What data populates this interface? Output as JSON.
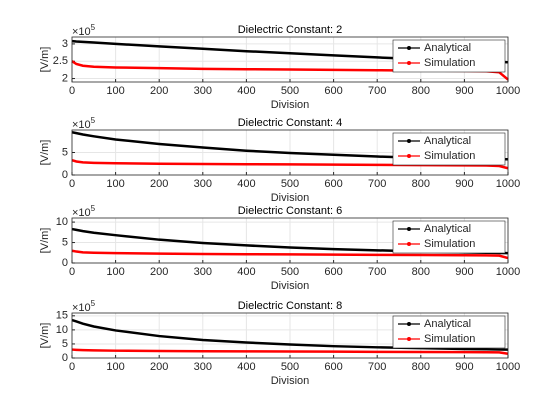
{
  "chart_data": [
    {
      "type": "line",
      "title": "Dielectric Constant: 2",
      "xlabel": "Division",
      "ylabel": "[V/m]",
      "yexp_base": "×10",
      "yexp_power": "5",
      "x": [
        0,
        10,
        25,
        50,
        100,
        200,
        300,
        400,
        500,
        600,
        700,
        800,
        900,
        950,
        980,
        1000
      ],
      "xlim": [
        0,
        1000
      ],
      "xticks": [
        0,
        100,
        200,
        300,
        400,
        500,
        600,
        700,
        800,
        900,
        1000
      ],
      "ylim": [
        1.9,
        3.2
      ],
      "yticks": [
        2,
        2.5,
        3
      ],
      "grid": true,
      "legend": "northeast",
      "series": [
        {
          "name": "Analytical",
          "color": "#000000",
          "values": [
            3.08,
            3.07,
            3.06,
            3.04,
            3.0,
            2.93,
            2.86,
            2.79,
            2.73,
            2.67,
            2.61,
            2.56,
            2.51,
            2.49,
            2.48,
            2.47
          ]
        },
        {
          "name": "Simulation",
          "color": "#ff0000",
          "values": [
            2.5,
            2.42,
            2.37,
            2.34,
            2.32,
            2.3,
            2.28,
            2.27,
            2.26,
            2.25,
            2.24,
            2.23,
            2.22,
            2.21,
            2.18,
            1.97
          ]
        }
      ]
    },
    {
      "type": "line",
      "title": "Dielectric Constant: 4",
      "xlabel": "Division",
      "ylabel": "[V/m]",
      "yexp_base": "×10",
      "yexp_power": "5",
      "x": [
        0,
        10,
        25,
        50,
        100,
        200,
        300,
        400,
        500,
        600,
        700,
        800,
        900,
        950,
        980,
        1000
      ],
      "xlim": [
        0,
        1000
      ],
      "xticks": [
        0,
        100,
        200,
        300,
        400,
        500,
        600,
        700,
        800,
        900,
        1000
      ],
      "ylim": [
        0,
        10
      ],
      "yticks": [
        0,
        5
      ],
      "grid": true,
      "legend": "northeast",
      "series": [
        {
          "name": "Analytical",
          "color": "#000000",
          "values": [
            9.5,
            9.3,
            9.0,
            8.6,
            7.9,
            6.9,
            6.1,
            5.4,
            4.9,
            4.5,
            4.1,
            3.8,
            3.6,
            3.55,
            3.5,
            3.5
          ]
        },
        {
          "name": "Simulation",
          "color": "#ff0000",
          "values": [
            3.3,
            3.0,
            2.8,
            2.7,
            2.6,
            2.5,
            2.45,
            2.4,
            2.35,
            2.3,
            2.25,
            2.2,
            2.15,
            2.1,
            2.0,
            1.5
          ]
        }
      ]
    },
    {
      "type": "line",
      "title": "Dielectric Constant: 6",
      "xlabel": "Division",
      "ylabel": "[V/m]",
      "yexp_base": "×10",
      "yexp_power": "5",
      "x": [
        0,
        10,
        25,
        50,
        100,
        200,
        300,
        400,
        500,
        600,
        700,
        800,
        900,
        950,
        980,
        1000
      ],
      "xlim": [
        0,
        1000
      ],
      "xticks": [
        0,
        100,
        200,
        300,
        400,
        500,
        600,
        700,
        800,
        900,
        1000
      ],
      "ylim": [
        0,
        11
      ],
      "yticks": [
        0,
        5,
        10
      ],
      "grid": true,
      "legend": "northeast",
      "series": [
        {
          "name": "Analytical",
          "color": "#000000",
          "values": [
            8.3,
            8.1,
            7.8,
            7.4,
            6.8,
            5.7,
            4.9,
            4.3,
            3.8,
            3.4,
            3.1,
            2.8,
            2.6,
            2.5,
            2.45,
            2.4
          ]
        },
        {
          "name": "Simulation",
          "color": "#ff0000",
          "values": [
            3.0,
            2.8,
            2.6,
            2.5,
            2.4,
            2.3,
            2.2,
            2.15,
            2.1,
            2.05,
            2.0,
            1.95,
            1.9,
            1.85,
            1.8,
            1.2
          ]
        }
      ]
    },
    {
      "type": "line",
      "title": "Dielectric Constant: 8",
      "xlabel": "Division",
      "ylabel": "[V/m]",
      "yexp_base": "×10",
      "yexp_power": "5",
      "x": [
        0,
        10,
        25,
        50,
        100,
        200,
        300,
        400,
        500,
        600,
        700,
        800,
        900,
        950,
        980,
        1000
      ],
      "xlim": [
        0,
        1000
      ],
      "xticks": [
        0,
        100,
        200,
        300,
        400,
        500,
        600,
        700,
        800,
        900,
        1000
      ],
      "ylim": [
        0,
        16
      ],
      "yticks": [
        0,
        5,
        10,
        15
      ],
      "grid": true,
      "legend": "northeast",
      "series": [
        {
          "name": "Analytical",
          "color": "#000000",
          "values": [
            13.5,
            13.0,
            12.2,
            11.2,
            9.8,
            7.8,
            6.4,
            5.5,
            4.8,
            4.2,
            3.8,
            3.5,
            3.2,
            3.1,
            3.0,
            3.0
          ]
        },
        {
          "name": "Simulation",
          "color": "#ff0000",
          "values": [
            3.0,
            2.9,
            2.8,
            2.7,
            2.6,
            2.5,
            2.4,
            2.35,
            2.3,
            2.25,
            2.2,
            2.15,
            2.1,
            2.05,
            2.0,
            1.5
          ]
        }
      ]
    }
  ]
}
